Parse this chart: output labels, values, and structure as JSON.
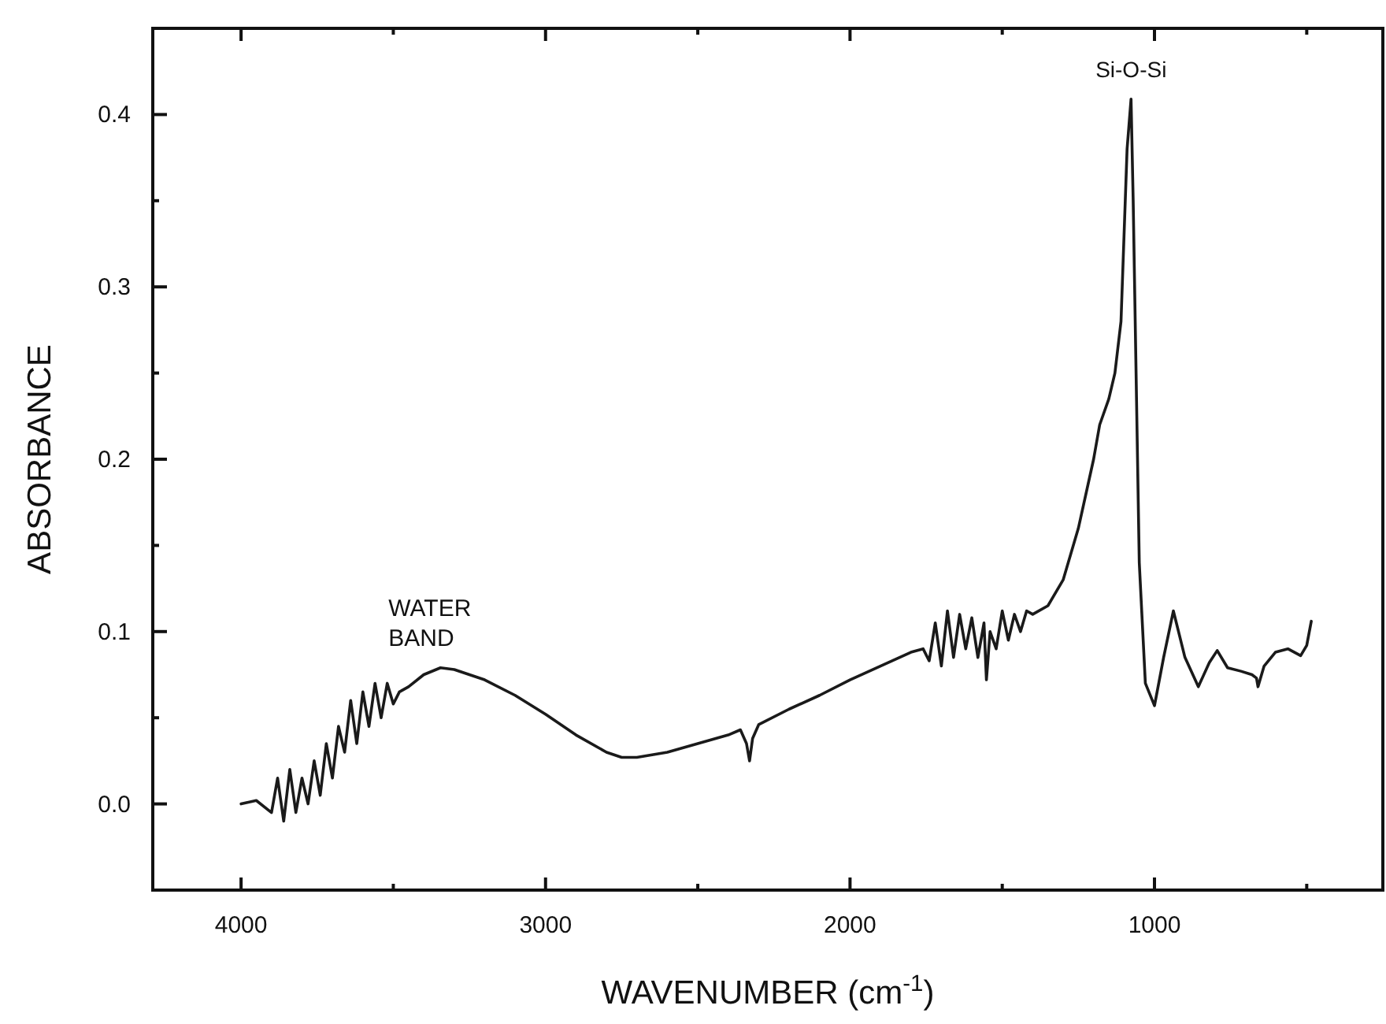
{
  "chart_data": {
    "type": "line",
    "xlabel": "WAVENUMBER (cm$^{-1}$)",
    "ylabel": "ABSORBANCE",
    "xlim": [
      4290,
      250
    ],
    "ylim": [
      -0.05,
      0.45
    ],
    "xticks": [
      4000,
      {
        "value": 3500,
        "label": null
      },
      3000,
      {
        "value": 2500,
        "label": null
      },
      2000,
      {
        "value": 1500,
        "label": null
      },
      1000,
      {
        "value": 500,
        "label": null
      }
    ],
    "yticks": [
      {
        "value": 0,
        "label": "0.0"
      },
      {
        "value": 0.05,
        "label": null
      },
      {
        "value": 0.1,
        "label": "0.1"
      },
      {
        "value": 0.15,
        "label": null
      },
      {
        "value": 0.2,
        "label": "0.2"
      },
      {
        "value": 0.25,
        "label": null
      },
      {
        "value": 0.3,
        "label": "0.3"
      },
      {
        "value": 0.35,
        "label": null
      },
      {
        "value": 0.4,
        "label": "0.4"
      }
    ],
    "grid": false,
    "marker": "none",
    "line_style": "solid",
    "annotations": [
      {
        "text": "WATER BAND",
        "x": 3345,
        "y": 0.079
      },
      {
        "text": "Si-O-Si",
        "x": 1077,
        "y": 0.409
      }
    ],
    "series": [
      {
        "color": "#1a1a1a",
        "x": [
          4000,
          3950,
          3900,
          3880,
          3860,
          3840,
          3820,
          3800,
          3780,
          3760,
          3740,
          3720,
          3700,
          3680,
          3660,
          3640,
          3620,
          3600,
          3580,
          3560,
          3540,
          3520,
          3500,
          3480,
          3450,
          3400,
          3345,
          3300,
          3200,
          3100,
          3000,
          2900,
          2800,
          2750,
          2700,
          2600,
          2500,
          2400,
          2360,
          2340,
          2330,
          2320,
          2300,
          2200,
          2100,
          2000,
          1900,
          1800,
          1760,
          1740,
          1720,
          1700,
          1680,
          1660,
          1640,
          1620,
          1600,
          1580,
          1560,
          1552,
          1540,
          1520,
          1500,
          1480,
          1460,
          1440,
          1420,
          1400,
          1350,
          1300,
          1250,
          1200,
          1180,
          1150,
          1130,
          1110,
          1100,
          1090,
          1077,
          1070,
          1050,
          1030,
          1000,
          970,
          938,
          900,
          856,
          820,
          794,
          760,
          716,
          680,
          665,
          660,
          640,
          603,
          562,
          520,
          500,
          485
        ],
        "values": [
          0.0,
          0.002,
          -0.005,
          0.015,
          -0.01,
          0.02,
          -0.005,
          0.015,
          0.0,
          0.025,
          0.005,
          0.035,
          0.015,
          0.045,
          0.03,
          0.06,
          0.035,
          0.065,
          0.045,
          0.07,
          0.05,
          0.07,
          0.058,
          0.065,
          0.068,
          0.075,
          0.079,
          0.078,
          0.072,
          0.063,
          0.052,
          0.04,
          0.03,
          0.027,
          0.027,
          0.03,
          0.035,
          0.04,
          0.043,
          0.035,
          0.025,
          0.038,
          0.046,
          0.055,
          0.063,
          0.072,
          0.08,
          0.088,
          0.09,
          0.083,
          0.105,
          0.08,
          0.112,
          0.085,
          0.11,
          0.09,
          0.108,
          0.085,
          0.105,
          0.072,
          0.1,
          0.09,
          0.112,
          0.095,
          0.11,
          0.1,
          0.112,
          0.11,
          0.115,
          0.13,
          0.16,
          0.2,
          0.22,
          0.235,
          0.25,
          0.28,
          0.33,
          0.38,
          0.409,
          0.35,
          0.14,
          0.07,
          0.057,
          0.085,
          0.112,
          0.085,
          0.068,
          0.082,
          0.089,
          0.079,
          0.077,
          0.075,
          0.073,
          0.068,
          0.08,
          0.088,
          0.09,
          0.086,
          0.092,
          0.106
        ]
      }
    ]
  }
}
